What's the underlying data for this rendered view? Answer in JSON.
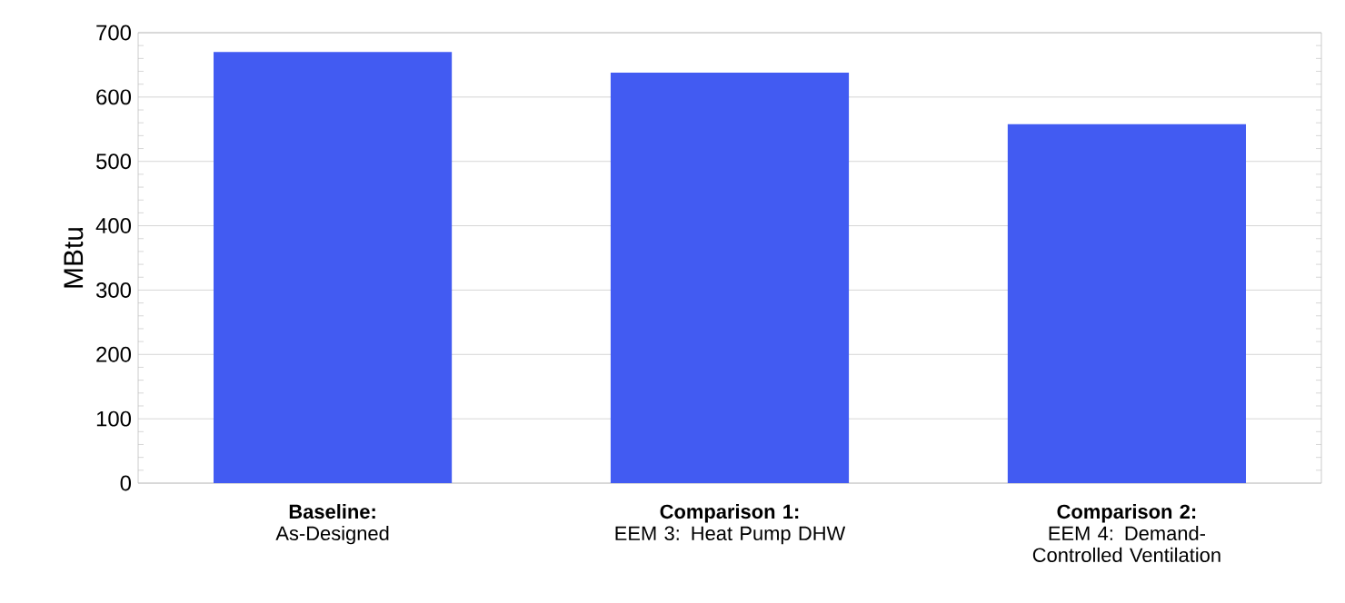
{
  "chart_data": {
    "type": "bar",
    "ylabel": "MBtu",
    "categories": [
      "**Baseline:**\nAs-Designed",
      "**Comparison 1:**\nEEM 3: Heat Pump DHW",
      "**Comparison 2:**\nEEM 4: Demand-Controlled Ventilation"
    ],
    "values": [
      670,
      638,
      558
    ],
    "color": "#425bf2",
    "ylim": [
      0,
      700
    ],
    "yticks": [
      0,
      100,
      200,
      300,
      400,
      500,
      600,
      700
    ],
    "grid": "y"
  }
}
